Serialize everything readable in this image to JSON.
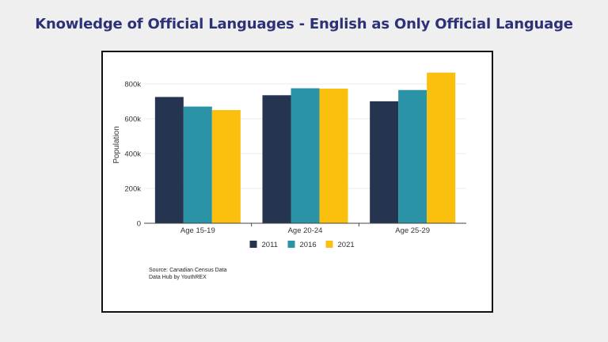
{
  "title": "Knowledge of Official Languages - English as Only Official Language",
  "source": {
    "line1": "Source: Canadian Census Data",
    "line2": "Data Hub by YouthREX"
  },
  "chart_data": {
    "type": "bar",
    "categories": [
      "Age 15-19",
      "Age 20-24",
      "Age 25-29"
    ],
    "series": [
      {
        "name": "2011",
        "color": "#25344f",
        "values": [
          725000,
          735000,
          700000
        ]
      },
      {
        "name": "2016",
        "color": "#2a94a6",
        "values": [
          670000,
          775000,
          765000
        ]
      },
      {
        "name": "2021",
        "color": "#fbbf0e",
        "values": [
          650000,
          773000,
          865000
        ]
      }
    ],
    "xlabel": "",
    "ylabel": "Population",
    "ylim": [
      0,
      900000
    ],
    "yticks": [
      0,
      200000,
      400000,
      600000,
      800000
    ],
    "ytick_labels": [
      "0",
      "200k",
      "400k",
      "600k",
      "800k"
    ],
    "grid": true,
    "legend_position": "bottom"
  }
}
